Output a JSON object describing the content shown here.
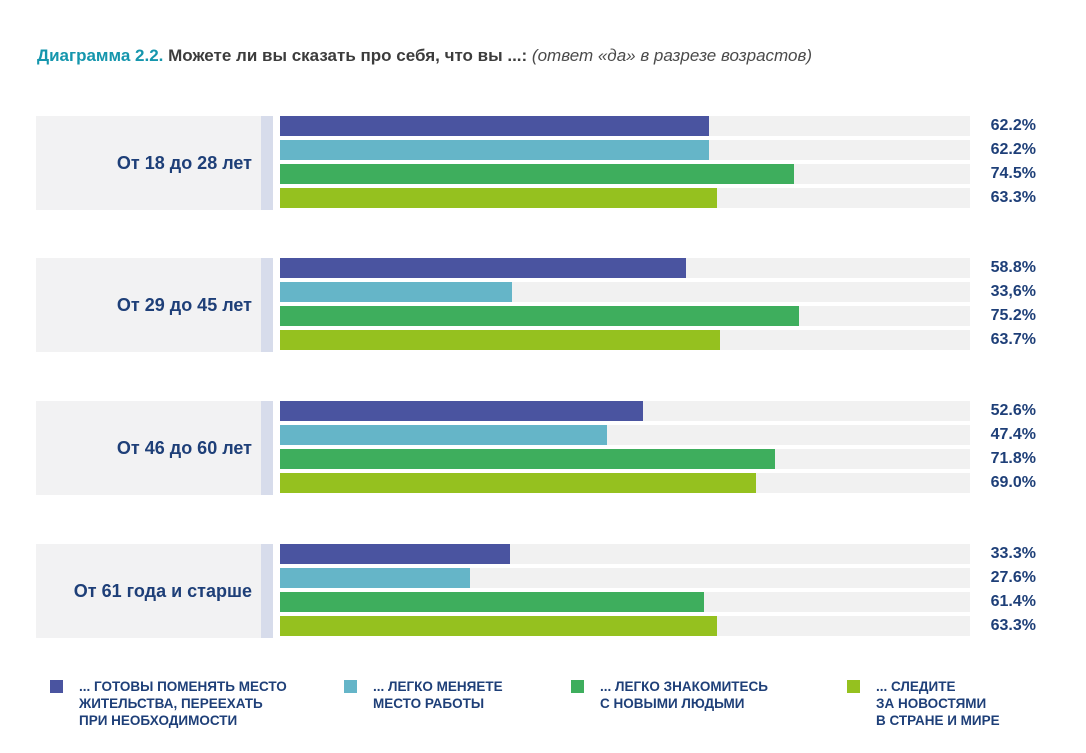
{
  "title": {
    "prefix": "Диаграмма 2.2.",
    "main": "Можете ли вы сказать про себя, что вы ...:",
    "note": "(ответ «да» в разрезе возрастов)"
  },
  "colors": [
    "#4a54a0",
    "#65b5c8",
    "#3eae5d",
    "#95c11f"
  ],
  "chart_data": {
    "type": "bar",
    "orientation": "horizontal",
    "xlim": [
      0,
      100
    ],
    "categories": [
      "От 18 до 28 лет",
      "От 29 до 45 лет",
      "От 46 до 60 лет",
      "От 61 года и старше"
    ],
    "series": [
      {
        "name": "... ГОТОВЫ ПОМЕНЯТЬ МЕСТО\nЖИТЕЛЬСТВА, ПЕРЕЕХАТЬ\nПРИ НЕОБХОДИМОСТИ",
        "values": [
          62.2,
          58.8,
          52.6,
          33.3
        ],
        "labels": [
          "62.2%",
          "58.8%",
          "52.6%",
          "33.3%"
        ]
      },
      {
        "name": "... ЛЕГКО МЕНЯЕТЕ\nМЕСТО РАБОТЫ",
        "values": [
          62.2,
          33.6,
          47.4,
          27.6
        ],
        "labels": [
          "62.2%",
          "33,6%",
          "47.4%",
          "27.6%"
        ]
      },
      {
        "name": "... ЛЕГКО ЗНАКОМИТЕСЬ\nС НОВЫМИ ЛЮДЬМИ",
        "values": [
          74.5,
          75.2,
          71.8,
          61.4
        ],
        "labels": [
          "74.5%",
          "75.2%",
          "71.8%",
          "61.4%"
        ]
      },
      {
        "name": "... СЛЕДИТЕ\nЗА НОВОСТЯМИ\nВ СТРАНЕ И МИРЕ",
        "values": [
          63.3,
          63.7,
          69.0,
          63.3
        ],
        "labels": [
          "63.3%",
          "63.7%",
          "69.0%",
          "63.3%"
        ]
      }
    ]
  }
}
